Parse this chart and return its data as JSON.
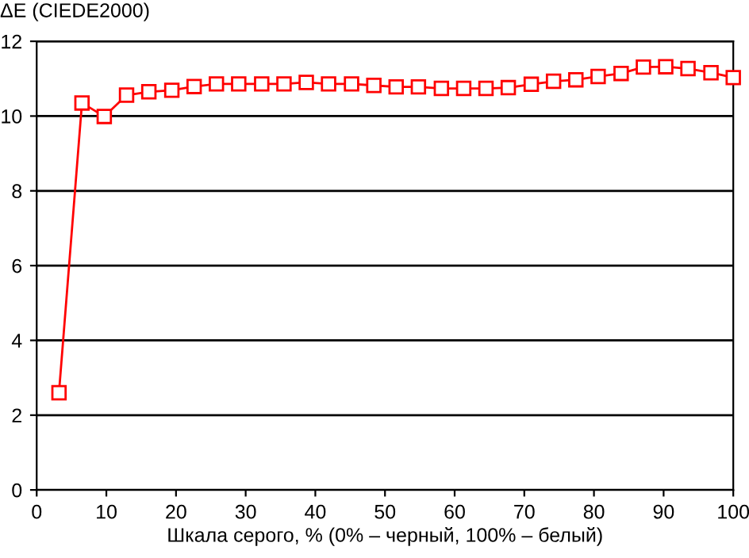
{
  "chart_data": {
    "type": "line",
    "ylabel": "ΔE (CIEDE2000)",
    "xlabel": "Шкала серого, % (0% – черный, 100% – белый)",
    "xlim": [
      0,
      100
    ],
    "xticks": [
      0,
      10,
      20,
      30,
      40,
      50,
      60,
      70,
      80,
      90,
      100
    ],
    "ylim": [
      0,
      12
    ],
    "yticks": [
      0,
      2,
      4,
      6,
      8,
      10,
      12
    ],
    "grid": "y",
    "marker": "square",
    "line_style": "solid",
    "series": [
      {
        "color": "#ff0000",
        "x": [
          3.2,
          6.5,
          9.7,
          12.9,
          16.1,
          19.4,
          22.6,
          25.8,
          29.0,
          32.3,
          35.5,
          38.7,
          41.9,
          45.2,
          48.4,
          51.6,
          54.8,
          58.1,
          61.3,
          64.5,
          67.7,
          71.0,
          74.2,
          77.4,
          80.6,
          83.9,
          87.1,
          90.3,
          93.5,
          96.8,
          100
        ],
        "values": [
          2.6,
          10.35,
          9.99,
          10.56,
          10.65,
          10.69,
          10.79,
          10.86,
          10.86,
          10.86,
          10.86,
          10.9,
          10.86,
          10.86,
          10.82,
          10.78,
          10.78,
          10.74,
          10.74,
          10.74,
          10.76,
          10.85,
          10.93,
          10.97,
          11.06,
          11.14,
          11.31,
          11.32,
          11.27,
          11.16,
          11.03
        ]
      }
    ]
  }
}
